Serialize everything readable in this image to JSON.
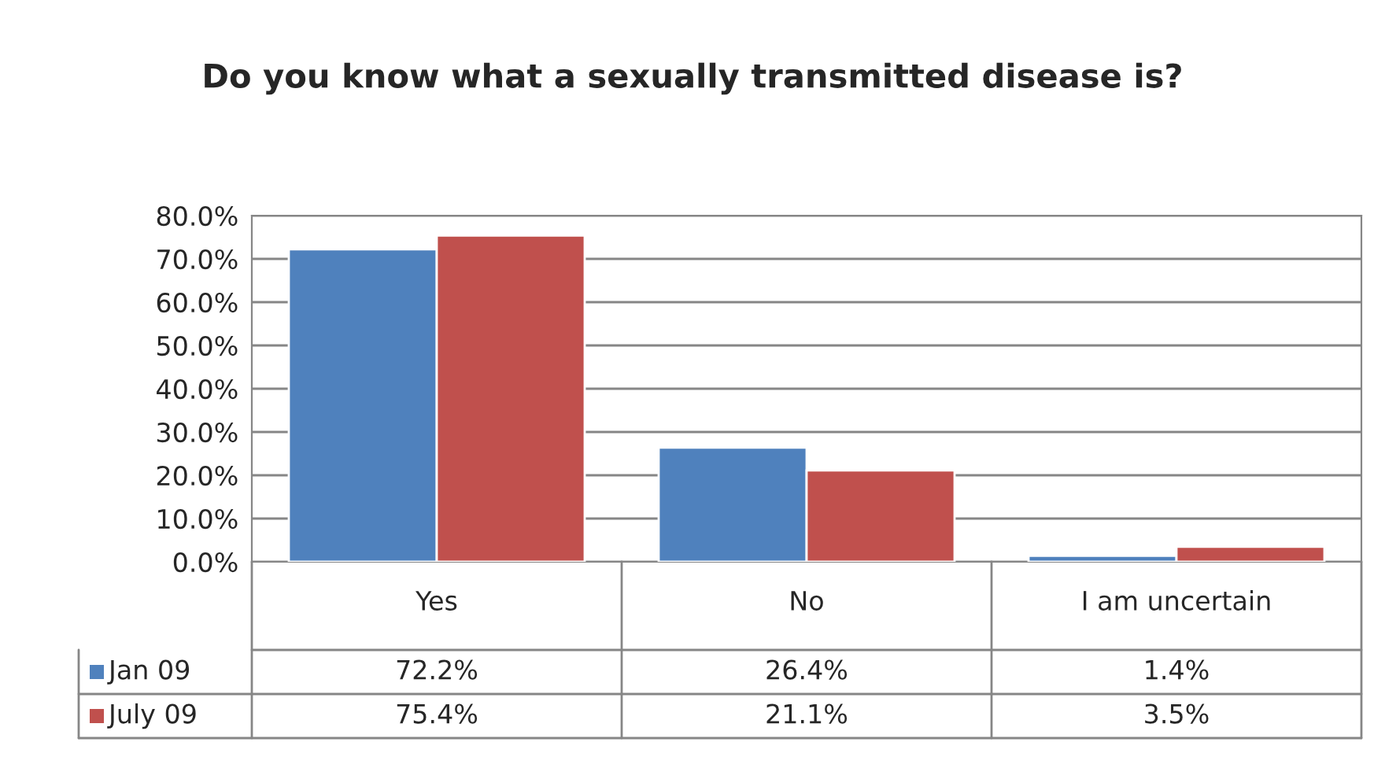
{
  "chart_data": {
    "type": "bar",
    "title": "Do you know what a sexually transmitted disease is?",
    "categories": [
      "Yes",
      "No",
      "I am uncertain"
    ],
    "series": [
      {
        "name": "Jan 09",
        "color": "#4f81bd",
        "values": [
          72.2,
          26.4,
          1.4
        ],
        "value_labels": [
          "72.2%",
          "26.4%",
          "1.4%"
        ]
      },
      {
        "name": "July 09",
        "color": "#c0504d",
        "values": [
          75.4,
          21.1,
          3.5
        ],
        "value_labels": [
          "75.4%",
          "21.1%",
          "3.5%"
        ]
      }
    ],
    "ylim": [
      0,
      80
    ],
    "yticks": [
      {
        "value": 0,
        "label": "0.0%"
      },
      {
        "value": 10,
        "label": "10.0%"
      },
      {
        "value": 20,
        "label": "20.0%"
      },
      {
        "value": 30,
        "label": "30.0%"
      },
      {
        "value": 40,
        "label": "40.0%"
      },
      {
        "value": 50,
        "label": "50.0%"
      },
      {
        "value": 60,
        "label": "60.0%"
      },
      {
        "value": 70,
        "label": "70.0%"
      },
      {
        "value": 80,
        "label": "80.0%"
      }
    ],
    "grid": "y",
    "legend": "bottom left"
  }
}
